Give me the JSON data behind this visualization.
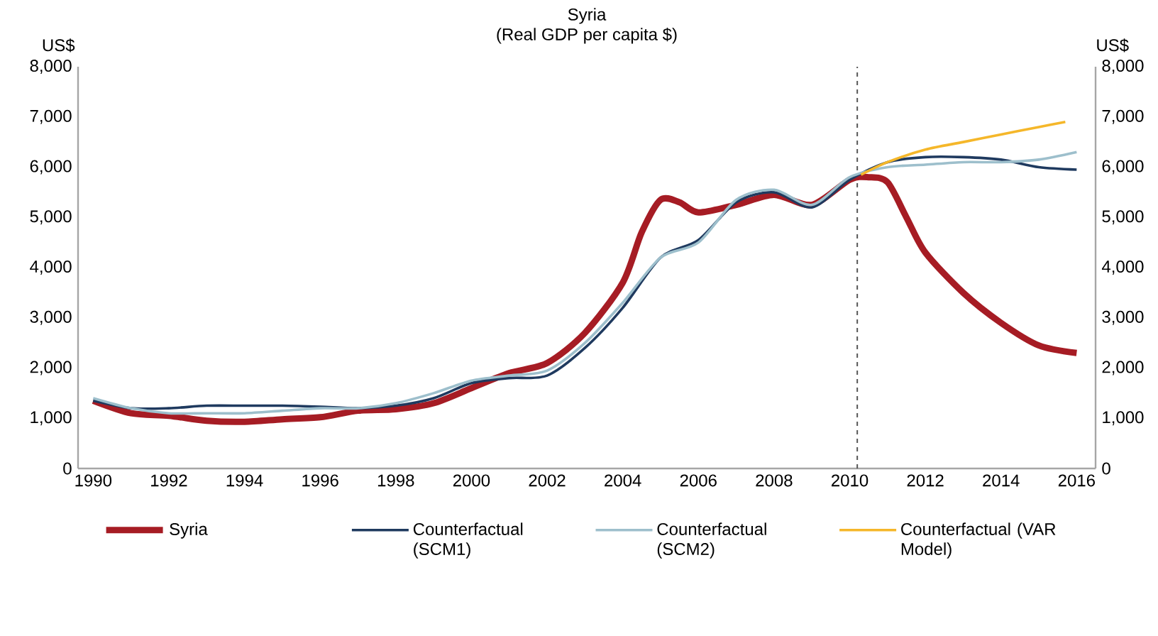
{
  "chart_data": {
    "type": "line",
    "title": "Syria",
    "subtitle": "(Real GDP per capita $)",
    "ylabel": "US$",
    "y2label": "US$",
    "xlim": [
      1989.6,
      2016.5
    ],
    "xticks": [
      1990,
      1992,
      1994,
      1996,
      1998,
      2000,
      2002,
      2004,
      2006,
      2008,
      2010,
      2012,
      2014,
      2016
    ],
    "ylim": [
      0,
      8000
    ],
    "yticks": [
      {
        "value": 0,
        "label": "0"
      },
      {
        "value": 1000,
        "label": "1,000"
      },
      {
        "value": 2000,
        "label": "2,000"
      },
      {
        "value": 3000,
        "label": "3,000"
      },
      {
        "value": 4000,
        "label": "4,000"
      },
      {
        "value": 5000,
        "label": "5,000"
      },
      {
        "value": 6000,
        "label": "6,000"
      },
      {
        "value": 7000,
        "label": "7,000"
      },
      {
        "value": 8000,
        "label": "8,000"
      }
    ],
    "y2lim": [
      0,
      8000
    ],
    "y2ticks": [
      {
        "value": 0,
        "label": "0"
      },
      {
        "value": 1000,
        "label": "1,000"
      },
      {
        "value": 2000,
        "label": "2,000"
      },
      {
        "value": 3000,
        "label": "3,000"
      },
      {
        "value": 4000,
        "label": "4,000"
      },
      {
        "value": 5000,
        "label": "5,000"
      },
      {
        "value": 6000,
        "label": "6,000"
      },
      {
        "value": 7000,
        "label": "7,000"
      },
      {
        "value": 8000,
        "label": "8,000"
      }
    ],
    "grid": false,
    "legend": "bottom",
    "marker": "none",
    "ref_lines": [
      {
        "axis": "x",
        "value": 2010.2,
        "color": "#555555",
        "line_style": "dashed"
      }
    ],
    "series": [
      {
        "name": "Syria",
        "color": "#a61c24",
        "x": [
          1990,
          1991,
          1992,
          1993,
          1994,
          1995,
          1996,
          1997,
          1998,
          1999,
          2000,
          2001,
          2002,
          2003,
          2004,
          2004.5,
          2005,
          2005.5,
          2006,
          2007,
          2008,
          2009,
          2010,
          2010.5,
          2011,
          2011.5,
          2012,
          2013,
          2014,
          2015,
          2016
        ],
        "values": [
          1350,
          1100,
          1050,
          950,
          930,
          980,
          1020,
          1150,
          1180,
          1300,
          1600,
          1900,
          2100,
          2700,
          3700,
          4700,
          5350,
          5300,
          5100,
          5250,
          5450,
          5250,
          5750,
          5800,
          5700,
          5000,
          4300,
          3500,
          2900,
          2450,
          2300
        ]
      },
      {
        "name": "Counterfactual (SCM1)",
        "color": "#1f3a5f",
        "x": [
          1990,
          1991,
          1992,
          1993,
          1994,
          1995,
          1996,
          1997,
          1998,
          1999,
          2000,
          2001,
          2002,
          2003,
          2004,
          2005,
          2006,
          2007,
          2008,
          2009,
          2010,
          2011,
          2012,
          2013,
          2014,
          2015,
          2016
        ],
        "values": [
          1350,
          1200,
          1200,
          1250,
          1250,
          1250,
          1230,
          1200,
          1250,
          1400,
          1700,
          1800,
          1850,
          2400,
          3200,
          4200,
          4550,
          5300,
          5500,
          5200,
          5750,
          6100,
          6200,
          6200,
          6150,
          6000,
          5950
        ]
      },
      {
        "name": "Counterfactual (SCM2)",
        "color": "#9dbfcc",
        "x": [
          1990,
          1991,
          1992,
          1993,
          1994,
          1995,
          1996,
          1997,
          1998,
          1999,
          2000,
          2001,
          2002,
          2003,
          2004,
          2005,
          2006,
          2007,
          2008,
          2009,
          2010,
          2011,
          2012,
          2013,
          2014,
          2015,
          2016
        ],
        "values": [
          1400,
          1200,
          1100,
          1100,
          1100,
          1150,
          1200,
          1200,
          1300,
          1500,
          1750,
          1850,
          1950,
          2500,
          3300,
          4200,
          4500,
          5350,
          5550,
          5250,
          5800,
          6000,
          6050,
          6100,
          6100,
          6150,
          6300
        ]
      },
      {
        "name": "Counterfactual (VAR Model)",
        "color": "#f5b72a",
        "x": [
          2010.3,
          2011,
          2012,
          2013,
          2014,
          2015,
          2015.7
        ],
        "values": [
          5850,
          6100,
          6350,
          6500,
          6650,
          6800,
          6900
        ]
      }
    ]
  }
}
